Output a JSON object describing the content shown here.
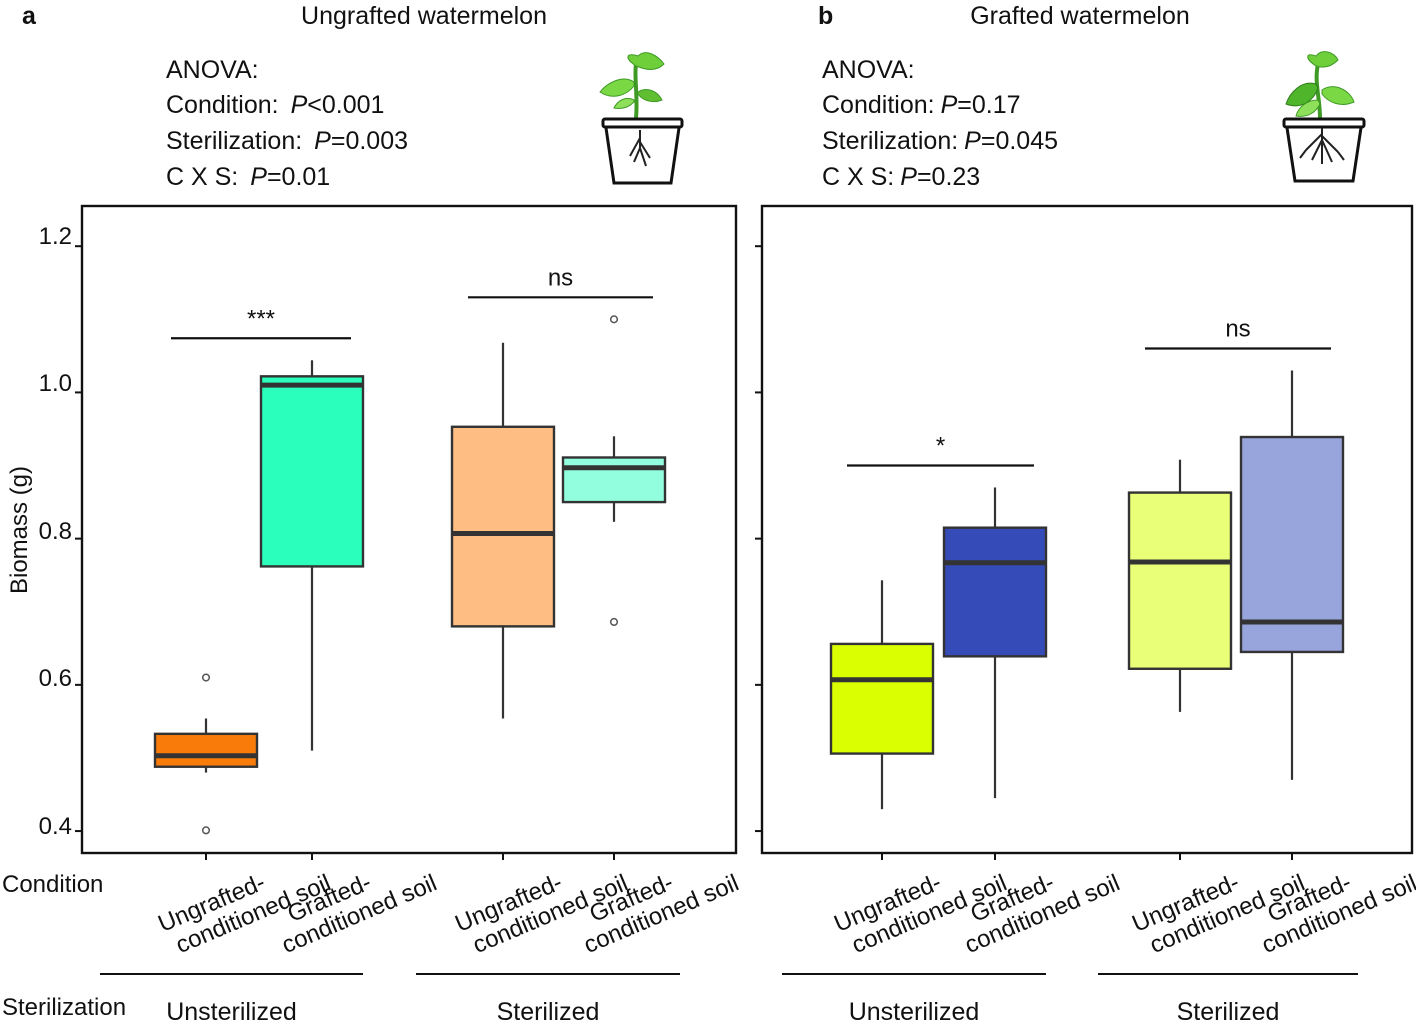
{
  "shared": {
    "ylabel": "Biomass (g)",
    "row_condition": "Condition",
    "row_sterilization": "Sterilization",
    "yticks": [
      "1.2",
      "1.0",
      "0.8",
      "0.6",
      "0.4"
    ]
  },
  "chart_data": [
    {
      "type": "box",
      "panel": "a",
      "title": "Ungrafted watermelon",
      "ylabel": "Biomass (g)",
      "ylim": [
        0.37,
        1.255
      ],
      "anova": {
        "header": "ANOVA:",
        "lines": [
          {
            "label": "Condition:",
            "p": "P",
            "value": "<0.001"
          },
          {
            "label": "Sterilization:",
            "p": "P",
            "value": "=0.003"
          },
          {
            "label": "C X S:",
            "p": "P",
            "value": "=0.01"
          }
        ]
      },
      "groups": [
        {
          "name": "Unsterilized",
          "categories": [
            "Ungrafted-conditioned soil",
            "Grafted-conditioned soil"
          ]
        },
        {
          "name": "Sterilized",
          "categories": [
            "Ungrafted-conditioned soil",
            "Grafted-conditioned soil"
          ]
        }
      ],
      "tick_labels": [
        {
          "l1": "Ungrafted-",
          "l2": "conditioned soil"
        },
        {
          "l1": "Grafted-",
          "l2": "conditioned soil"
        },
        {
          "l1": "Ungrafted-",
          "l2": "conditioned soil"
        },
        {
          "l1": "Grafted-",
          "l2": "conditioned soil"
        }
      ],
      "boxes": [
        {
          "group": "Unsterilized",
          "condition": "Ungrafted-conditioned soil",
          "color": "#f97c0b",
          "whisker_low": 0.48,
          "q1": 0.488,
          "median": 0.503,
          "q3": 0.533,
          "whisker_high": 0.554,
          "outliers": [
            0.61,
            0.401
          ]
        },
        {
          "group": "Unsterilized",
          "condition": "Grafted-conditioned soil",
          "color": "#2affbb",
          "whisker_low": 0.51,
          "q1": 0.762,
          "median": 1.01,
          "q3": 1.022,
          "whisker_high": 1.044,
          "outliers": []
        },
        {
          "group": "Sterilized",
          "condition": "Ungrafted-conditioned soil",
          "color": "#fdbd83",
          "whisker_low": 0.554,
          "q1": 0.68,
          "median": 0.807,
          "q3": 0.953,
          "whisker_high": 1.068,
          "outliers": []
        },
        {
          "group": "Sterilized",
          "condition": "Grafted-conditioned soil",
          "color": "#93fede",
          "whisker_low": 0.823,
          "q1": 0.85,
          "median": 0.897,
          "q3": 0.911,
          "whisker_high": 0.94,
          "outliers": [
            1.1,
            0.686
          ]
        }
      ],
      "significance": [
        {
          "label": "***",
          "between": [
            0,
            1
          ]
        },
        {
          "label": "ns",
          "between": [
            2,
            3
          ]
        }
      ]
    },
    {
      "type": "box",
      "panel": "b",
      "title": "Grafted watermelon",
      "ylabel": "",
      "ylim": [
        0.37,
        1.255
      ],
      "anova": {
        "header": "ANOVA:",
        "lines": [
          {
            "label": "Condition:",
            "p": "P",
            "value": "=0.17"
          },
          {
            "label": "Sterilization:",
            "p": "P",
            "value": "=0.045"
          },
          {
            "label": "C X S:",
            "p": "P",
            "value": "=0.23"
          }
        ]
      },
      "groups": [
        {
          "name": "Unsterilized",
          "categories": [
            "Ungrafted-conditioned soil",
            "Grafted-conditioned soil"
          ]
        },
        {
          "name": "Sterilized",
          "categories": [
            "Ungrafted-conditioned soil",
            "Grafted-conditioned soil"
          ]
        }
      ],
      "tick_labels": [
        {
          "l1": "Ungrafted-",
          "l2": "conditioned soil"
        },
        {
          "l1": "Grafted-",
          "l2": "conditioned soil"
        },
        {
          "l1": "Ungrafted-",
          "l2": "conditioned soil"
        },
        {
          "l1": "Grafted-",
          "l2": "conditioned soil"
        }
      ],
      "boxes": [
        {
          "group": "Unsterilized",
          "condition": "Ungrafted-conditioned soil",
          "color": "#d9ff00",
          "whisker_low": 0.43,
          "q1": 0.506,
          "median": 0.607,
          "q3": 0.656,
          "whisker_high": 0.743,
          "outliers": []
        },
        {
          "group": "Unsterilized",
          "condition": "Grafted-conditioned soil",
          "color": "#344bb8",
          "whisker_low": 0.445,
          "q1": 0.639,
          "median": 0.767,
          "q3": 0.815,
          "whisker_high": 0.87,
          "outliers": []
        },
        {
          "group": "Sterilized",
          "condition": "Ungrafted-conditioned soil",
          "color": "#e8ff77",
          "whisker_low": 0.563,
          "q1": 0.622,
          "median": 0.768,
          "q3": 0.863,
          "whisker_high": 0.908,
          "outliers": []
        },
        {
          "group": "Sterilized",
          "condition": "Grafted-conditioned soil",
          "color": "#97a5dc",
          "whisker_low": 0.47,
          "q1": 0.645,
          "median": 0.686,
          "q3": 0.939,
          "whisker_high": 1.03,
          "outliers": []
        }
      ],
      "significance": [
        {
          "label": "*",
          "between": [
            0,
            1
          ]
        },
        {
          "label": "ns",
          "between": [
            2,
            3
          ]
        }
      ]
    }
  ]
}
